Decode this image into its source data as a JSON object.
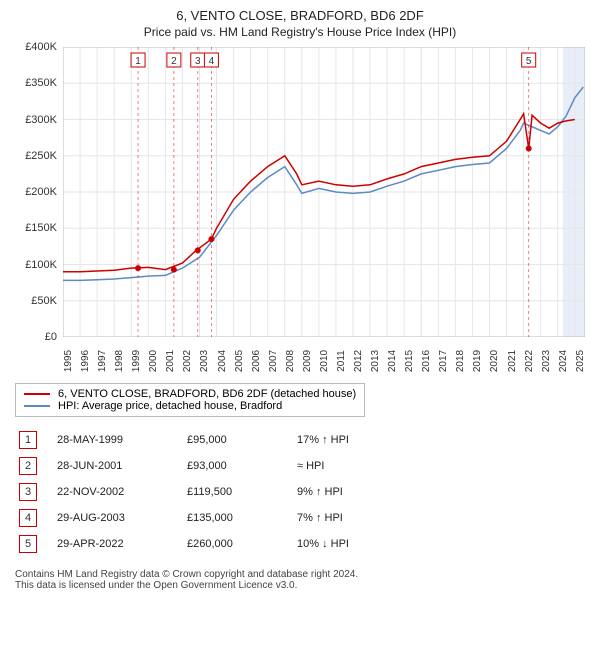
{
  "title": "6, VENTO CLOSE, BRADFORD, BD6 2DF",
  "subtitle": "Price paid vs. HM Land Registry's House Price Index (HPI)",
  "chart": {
    "background_color": "#ffffff",
    "grid_color": "#e6e6e6",
    "plot_band_color": "#e8eef7",
    "plot_band_start": 2024.3,
    "plot_band_end": 2025.6,
    "xlim": [
      1995,
      2025.6
    ],
    "ylim": [
      0,
      400000
    ],
    "ytick_labels": [
      "£0",
      "£50K",
      "£100K",
      "£150K",
      "£200K",
      "£250K",
      "£300K",
      "£350K",
      "£400K"
    ],
    "ytick_values": [
      0,
      50000,
      100000,
      150000,
      200000,
      250000,
      300000,
      350000,
      400000
    ],
    "x_years": [
      1995,
      1996,
      1997,
      1998,
      1999,
      2000,
      2001,
      2002,
      2003,
      2004,
      2005,
      2006,
      2007,
      2008,
      2009,
      2010,
      2011,
      2012,
      2013,
      2014,
      2015,
      2016,
      2017,
      2018,
      2019,
      2020,
      2021,
      2022,
      2023,
      2024,
      2025
    ],
    "series": {
      "property": {
        "color": "#cc0000",
        "width": 1.5,
        "points": [
          [
            1995,
            90000
          ],
          [
            1996,
            90000
          ],
          [
            1997,
            91000
          ],
          [
            1998,
            92000
          ],
          [
            1999,
            95000
          ],
          [
            2000,
            96000
          ],
          [
            2001,
            93000
          ],
          [
            2002,
            102000
          ],
          [
            2002.8,
            119500
          ],
          [
            2003.7,
            135000
          ],
          [
            2004,
            150000
          ],
          [
            2005,
            190000
          ],
          [
            2006,
            215000
          ],
          [
            2007,
            235000
          ],
          [
            2008,
            250000
          ],
          [
            2008.7,
            225000
          ],
          [
            2009,
            210000
          ],
          [
            2010,
            215000
          ],
          [
            2011,
            210000
          ],
          [
            2012,
            208000
          ],
          [
            2013,
            210000
          ],
          [
            2014,
            218000
          ],
          [
            2015,
            225000
          ],
          [
            2016,
            235000
          ],
          [
            2017,
            240000
          ],
          [
            2018,
            245000
          ],
          [
            2019,
            248000
          ],
          [
            2020,
            250000
          ],
          [
            2021,
            270000
          ],
          [
            2021.8,
            300000
          ],
          [
            2022,
            308000
          ],
          [
            2022.3,
            260000
          ],
          [
            2022.5,
            306000
          ],
          [
            2023,
            295000
          ],
          [
            2023.5,
            288000
          ],
          [
            2024,
            295000
          ],
          [
            2024.5,
            298000
          ],
          [
            2025,
            300000
          ]
        ]
      },
      "hpi": {
        "color": "#5b8ac5",
        "width": 1.5,
        "points": [
          [
            1995,
            78000
          ],
          [
            1996,
            78000
          ],
          [
            1997,
            79000
          ],
          [
            1998,
            80000
          ],
          [
            1999,
            82000
          ],
          [
            2000,
            84000
          ],
          [
            2001,
            85000
          ],
          [
            2002,
            95000
          ],
          [
            2003,
            110000
          ],
          [
            2004,
            140000
          ],
          [
            2005,
            175000
          ],
          [
            2006,
            200000
          ],
          [
            2007,
            220000
          ],
          [
            2008,
            235000
          ],
          [
            2008.7,
            210000
          ],
          [
            2009,
            198000
          ],
          [
            2010,
            205000
          ],
          [
            2011,
            200000
          ],
          [
            2012,
            198000
          ],
          [
            2013,
            200000
          ],
          [
            2014,
            208000
          ],
          [
            2015,
            215000
          ],
          [
            2016,
            225000
          ],
          [
            2017,
            230000
          ],
          [
            2018,
            235000
          ],
          [
            2019,
            238000
          ],
          [
            2020,
            240000
          ],
          [
            2021,
            260000
          ],
          [
            2021.8,
            285000
          ],
          [
            2022,
            295000
          ],
          [
            2023,
            285000
          ],
          [
            2023.5,
            280000
          ],
          [
            2024,
            290000
          ],
          [
            2024.5,
            305000
          ],
          [
            2025,
            330000
          ],
          [
            2025.5,
            345000
          ]
        ]
      }
    },
    "markers": [
      {
        "n": "1",
        "x": 1999.4,
        "y": 95000,
        "chart_y": 60000,
        "line_color": "#cc0000"
      },
      {
        "n": "2",
        "x": 2001.5,
        "y": 93000,
        "chart_y": 60000,
        "line_color": "#cc0000"
      },
      {
        "n": "3",
        "x": 2002.9,
        "y": 119500,
        "chart_y": 60000,
        "line_color": "#cc0000"
      },
      {
        "n": "4",
        "x": 2003.7,
        "y": 135000,
        "chart_y": 60000,
        "line_color": "#cc0000"
      },
      {
        "n": "5",
        "x": 2022.3,
        "y": 260000,
        "chart_y": 60000,
        "line_color": "#cc0000"
      }
    ]
  },
  "legend": [
    {
      "color": "#cc0000",
      "label": "6, VENTO CLOSE, BRADFORD, BD6 2DF (detached house)"
    },
    {
      "color": "#5b8ac5",
      "label": "HPI: Average price, detached house, Bradford"
    }
  ],
  "records": [
    {
      "n": "1",
      "date": "28-MAY-1999",
      "price": "£95,000",
      "delta": "17% ↑ HPI"
    },
    {
      "n": "2",
      "date": "28-JUN-2001",
      "price": "£93,000",
      "delta": "≈ HPI"
    },
    {
      "n": "3",
      "date": "22-NOV-2002",
      "price": "£119,500",
      "delta": "9% ↑ HPI"
    },
    {
      "n": "4",
      "date": "29-AUG-2003",
      "price": "£135,000",
      "delta": "7% ↑ HPI"
    },
    {
      "n": "5",
      "date": "29-APR-2022",
      "price": "£260,000",
      "delta": "10% ↓ HPI"
    }
  ],
  "footer_line1": "Contains HM Land Registry data © Crown copyright and database right 2024.",
  "footer_line2": "This data is licensed under the Open Government Licence v3.0."
}
